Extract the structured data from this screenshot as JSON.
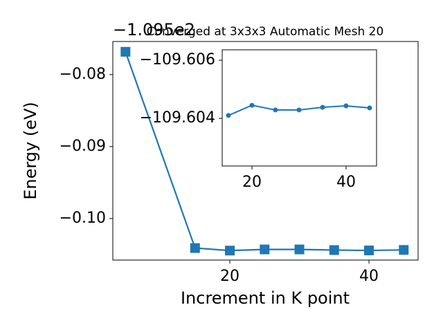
{
  "chart_data": [
    {
      "type": "line",
      "title": "Converged at 3x3x3 Automatic Mesh 20",
      "y_offset_label": "−1.095e2",
      "x_label": "Increment in K point",
      "y_label": "Energy (eV)",
      "marker": "square",
      "x": [
        5,
        15,
        20,
        25,
        30,
        35,
        40,
        45
      ],
      "series": [
        {
          "color": "#1f77b4",
          "values": [
            -0.07683,
            -0.1041,
            -0.10445,
            -0.10429,
            -0.10429,
            -0.10438,
            -0.10443,
            -0.10436
          ]
        }
      ],
      "xlim": [
        3.18,
        47.06
      ],
      "ylim": [
        -0.10577,
        -0.0754
      ],
      "xticks": [
        20,
        40
      ],
      "yticks": [
        {
          "value": -0.1,
          "label": "−0.10"
        },
        {
          "value": -0.09,
          "label": "−0.09"
        },
        {
          "value": -0.08,
          "label": "−0.08"
        }
      ]
    },
    {
      "type": "line",
      "marker": "circle",
      "x": [
        15,
        20,
        25,
        30,
        35,
        40,
        45
      ],
      "series": [
        {
          "color": "#1f77b4",
          "values": [
            -109.6041,
            -109.60445,
            -109.60429,
            -109.60429,
            -109.60438,
            -109.60443,
            -109.60436
          ]
        }
      ],
      "xlim": [
        13.68,
        46.47
      ],
      "ylim": [
        -109.60236,
        -109.60636
      ],
      "xticks": [
        20,
        40
      ],
      "yticks": [
        {
          "value": -109.604,
          "label": "−109.604"
        },
        {
          "value": -109.606,
          "label": "−109.606"
        }
      ]
    }
  ]
}
